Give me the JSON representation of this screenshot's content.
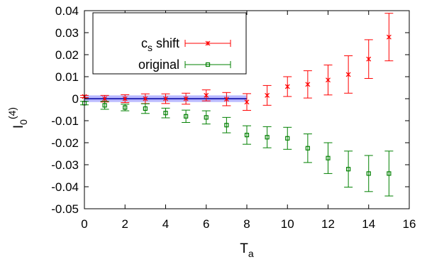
{
  "chart_data": {
    "type": "scatter",
    "xlabel": "T",
    "xlabel_sub": "a",
    "ylabel": "I",
    "ylabel_sub": "0",
    "ylabel_sup": "(4)",
    "xlim": [
      0,
      16
    ],
    "ylim": [
      -0.05,
      0.04
    ],
    "xticks": [
      "0",
      "2",
      "4",
      "6",
      "8",
      "10",
      "12",
      "14",
      "16"
    ],
    "yticks": [
      "0.04",
      "0.03",
      "0.02",
      "0.01",
      "0",
      "-0.01",
      "-0.02",
      "-0.03",
      "-0.04",
      "-0.05"
    ],
    "grid": false,
    "legend_position": "top-left",
    "band": {
      "x_range": [
        0,
        8
      ],
      "y_range": [
        -0.0015,
        0.0015
      ],
      "y_center": 0.0,
      "color": "#8080ff"
    },
    "series": [
      {
        "name": "c",
        "name_sub": "s",
        "name_suffix": " shift",
        "marker": "x",
        "color": "#ff0000",
        "x": [
          0,
          1,
          2,
          3,
          4,
          5,
          6,
          7,
          8,
          9,
          10,
          11,
          12,
          13,
          14,
          15
        ],
        "y": [
          0.001,
          0.0,
          0.0,
          0.0,
          0.0,
          0.0,
          0.0015,
          -0.0002,
          -0.0015,
          0.0015,
          0.0055,
          0.0065,
          0.0085,
          0.011,
          0.018,
          0.028
        ],
        "err": [
          0.0005,
          0.0015,
          0.0018,
          0.0022,
          0.0022,
          0.0025,
          0.0025,
          0.003,
          0.0038,
          0.0045,
          0.0045,
          0.0062,
          0.0068,
          0.0085,
          0.0088,
          0.0108
        ]
      },
      {
        "name": "original",
        "marker": "square",
        "color": "#008000",
        "x": [
          0,
          1,
          2,
          3,
          4,
          5,
          6,
          7,
          8,
          9,
          10,
          11,
          12,
          13,
          14,
          15
        ],
        "y": [
          -0.002,
          -0.003,
          -0.004,
          -0.0045,
          -0.0065,
          -0.008,
          -0.0085,
          -0.012,
          -0.0165,
          -0.0175,
          -0.018,
          -0.0225,
          -0.027,
          -0.032,
          -0.034,
          -0.034
        ],
        "err": [
          0.0008,
          0.0018,
          0.0015,
          0.0022,
          0.0022,
          0.0028,
          0.003,
          0.0035,
          0.0042,
          0.0048,
          0.005,
          0.0065,
          0.007,
          0.0082,
          0.0082,
          0.0102
        ]
      }
    ]
  }
}
